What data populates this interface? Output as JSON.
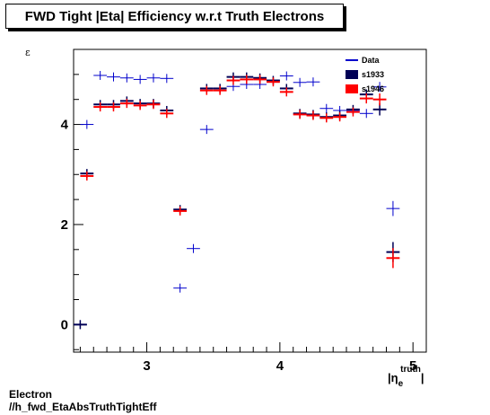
{
  "title": "FWD Tight |Eta| Efficiency w.r.t Truth Electrons",
  "footer_line1": "Electron",
  "footer_line2": "//h_fwd_EtaAbsTruthTightEff",
  "chart_data": {
    "type": "scatter",
    "ylabel": "ε",
    "xlabel": "|η_e^truth|",
    "xlabel_parts": {
      "base": "|η",
      "sub": "e",
      "sup": "truth",
      "close": "|"
    },
    "xlim": [
      2.45,
      5.1
    ],
    "ylim": [
      -0.55,
      5.5
    ],
    "x_ticks": [
      "3",
      "4",
      "5"
    ],
    "y_ticks": [
      "0",
      "2",
      "4"
    ],
    "legend_position": "top-right",
    "colors": {
      "Data": "#0000cc",
      "s1933": "#000055",
      "s1946": "#ff0000"
    },
    "series": [
      {
        "name": "Data",
        "style": "errorbar-cross",
        "color": "#0000cc",
        "points": [
          [
            2.5,
            0.0
          ],
          [
            2.55,
            4.0
          ],
          [
            2.65,
            4.98
          ],
          [
            2.75,
            4.95
          ],
          [
            2.85,
            4.93
          ],
          [
            2.95,
            4.9
          ],
          [
            3.05,
            4.93
          ],
          [
            3.15,
            4.92
          ],
          [
            3.25,
            0.73
          ],
          [
            3.35,
            1.52
          ],
          [
            3.45,
            3.9
          ],
          [
            3.55,
            4.72
          ],
          [
            3.65,
            4.76
          ],
          [
            3.75,
            4.8
          ],
          [
            3.85,
            4.8
          ],
          [
            3.95,
            4.88
          ],
          [
            4.05,
            4.97
          ],
          [
            4.15,
            4.84
          ],
          [
            4.25,
            4.85
          ],
          [
            4.35,
            4.32
          ],
          [
            4.45,
            4.28
          ],
          [
            4.55,
            4.28
          ],
          [
            4.65,
            4.22
          ],
          [
            4.75,
            4.75
          ],
          [
            4.85,
            2.32
          ]
        ],
        "xerr": 0.05,
        "yerr": [
          0.01,
          0.01,
          0.01,
          0.01,
          0.01,
          0.01,
          0.01,
          0.01,
          0.02,
          0.03,
          0.02,
          0.02,
          0.02,
          0.02,
          0.02,
          0.02,
          0.02,
          0.03,
          0.04,
          0.06,
          0.06,
          0.07,
          0.08,
          0.1,
          0.15
        ]
      },
      {
        "name": "s1933",
        "style": "bar-marker",
        "color": "#000055",
        "points": [
          [
            2.5,
            0.0
          ],
          [
            2.55,
            3.02
          ],
          [
            2.65,
            4.4
          ],
          [
            2.75,
            4.4
          ],
          [
            2.85,
            4.47
          ],
          [
            2.95,
            4.42
          ],
          [
            3.05,
            4.42
          ],
          [
            3.15,
            4.28
          ],
          [
            3.25,
            2.3
          ],
          [
            3.35,
            null
          ],
          [
            3.45,
            4.72
          ],
          [
            3.55,
            4.72
          ],
          [
            3.65,
            4.95
          ],
          [
            3.75,
            4.95
          ],
          [
            3.85,
            4.93
          ],
          [
            3.95,
            4.88
          ],
          [
            4.05,
            4.72
          ],
          [
            4.15,
            4.22
          ],
          [
            4.25,
            4.2
          ],
          [
            4.35,
            4.15
          ],
          [
            4.45,
            4.18
          ],
          [
            4.55,
            4.3
          ],
          [
            4.65,
            4.6
          ],
          [
            4.75,
            4.3
          ],
          [
            4.85,
            1.45
          ]
        ],
        "yerr": [
          0.01,
          0.02,
          0.02,
          0.02,
          0.02,
          0.02,
          0.02,
          0.02,
          0.03,
          0,
          0.02,
          0.02,
          0.02,
          0.02,
          0.02,
          0.02,
          0.03,
          0.04,
          0.05,
          0.06,
          0.07,
          0.08,
          0.1,
          0.12,
          0.2
        ]
      },
      {
        "name": "s1946",
        "style": "bar-marker",
        "color": "#ff0000",
        "points": [
          [
            2.5,
            null
          ],
          [
            2.55,
            2.97
          ],
          [
            2.65,
            4.35
          ],
          [
            2.75,
            4.35
          ],
          [
            2.85,
            4.42
          ],
          [
            2.95,
            4.38
          ],
          [
            3.05,
            4.4
          ],
          [
            3.15,
            4.22
          ],
          [
            3.25,
            2.27
          ],
          [
            3.35,
            null
          ],
          [
            3.45,
            4.68
          ],
          [
            3.55,
            4.68
          ],
          [
            3.65,
            4.88
          ],
          [
            3.75,
            4.9
          ],
          [
            3.85,
            4.9
          ],
          [
            3.95,
            4.85
          ],
          [
            4.05,
            4.65
          ],
          [
            4.15,
            4.2
          ],
          [
            4.25,
            4.18
          ],
          [
            4.35,
            4.13
          ],
          [
            4.45,
            4.15
          ],
          [
            4.55,
            4.25
          ],
          [
            4.65,
            4.52
          ],
          [
            4.75,
            4.5
          ],
          [
            4.85,
            1.33
          ]
        ],
        "yerr": [
          0,
          0.02,
          0.02,
          0.02,
          0.02,
          0.02,
          0.02,
          0.02,
          0.03,
          0,
          0.02,
          0.02,
          0.02,
          0.02,
          0.02,
          0.02,
          0.03,
          0.04,
          0.05,
          0.06,
          0.07,
          0.08,
          0.1,
          0.12,
          0.2
        ]
      }
    ]
  }
}
